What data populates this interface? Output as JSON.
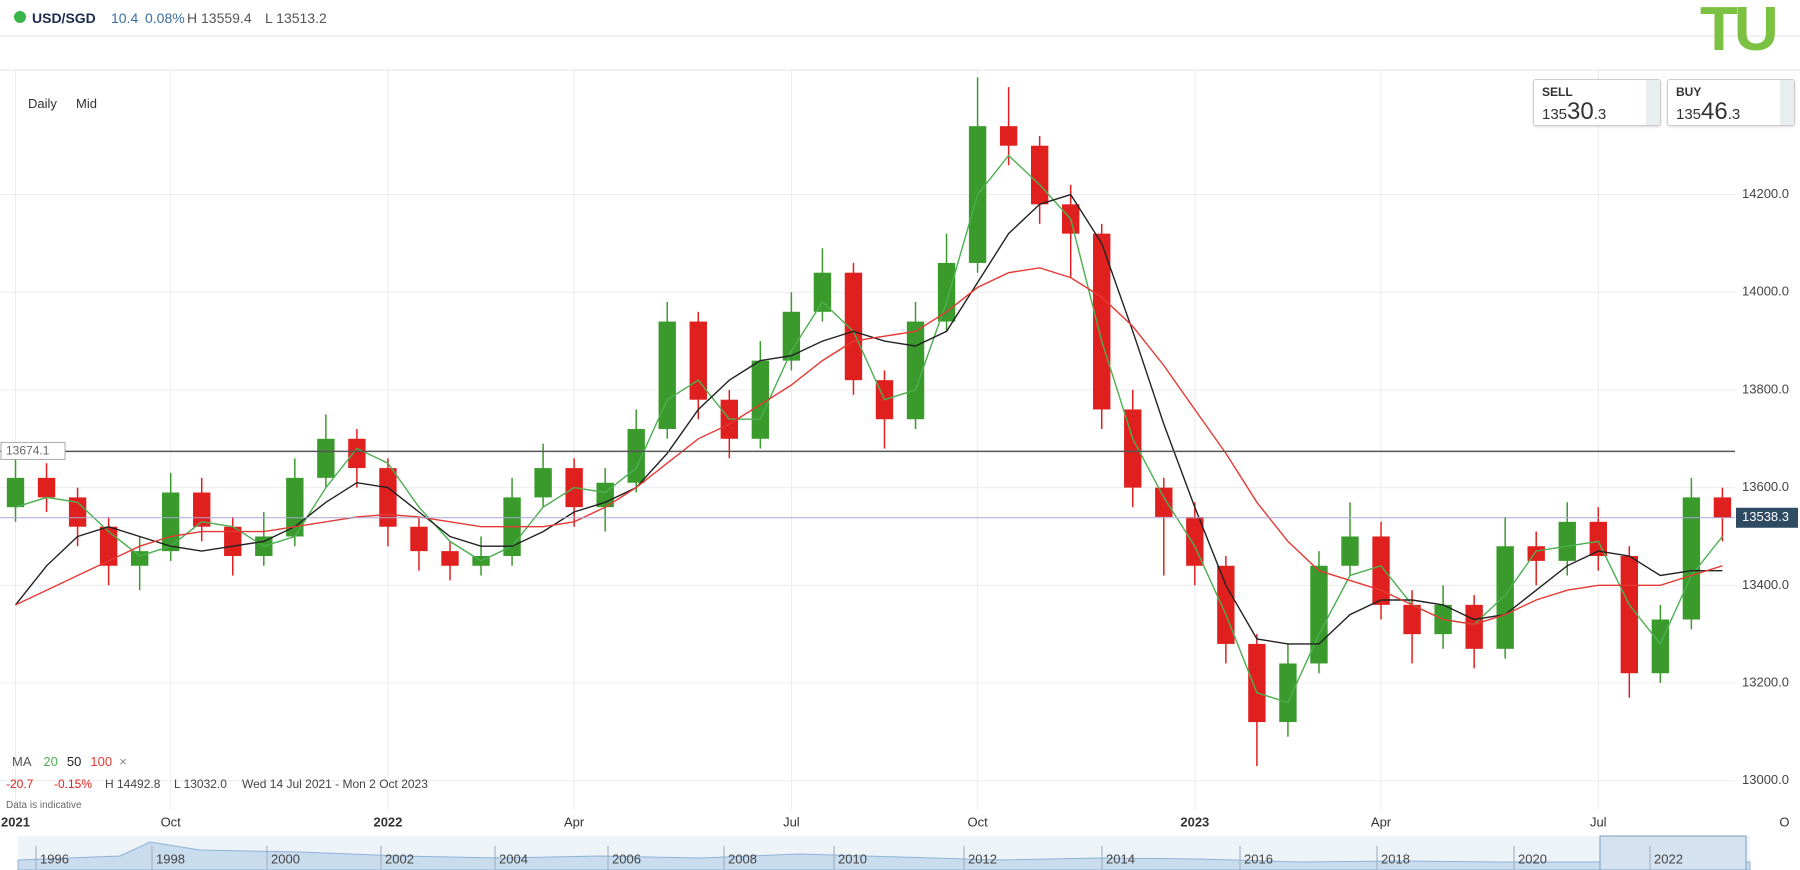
{
  "header": {
    "symbol": "USD/SGD",
    "change": "10.4",
    "change_pct": "0.08%",
    "high": "H 13559.4",
    "low": "L 13513.2"
  },
  "logo": "TU",
  "sell": {
    "label": "SELL",
    "prefix": "135",
    "big": "30",
    "suffix": ".3"
  },
  "buy": {
    "label": "BUY",
    "prefix": "135",
    "big": "46",
    "suffix": ".3"
  },
  "toolbar": {
    "interval": "Daily",
    "price_type": "Mid"
  },
  "stats": {
    "ma_label": "MA",
    "change": "-20.7",
    "change_pct": "-0.15%",
    "high": "H 14492.8",
    "low": "L 13032.0",
    "range": "Wed 14 Jul 2021 - Mon 2 Oct 2023",
    "close": "×",
    "note": "Data is indicative"
  },
  "navigator": {
    "years": [
      "1996",
      "1998",
      "2000",
      "2002",
      "2004",
      "2006",
      "2008",
      "2010",
      "2012",
      "2014",
      "2016",
      "2018",
      "2020",
      "2022"
    ]
  },
  "chart_data": {
    "type": "candlestick",
    "up_color": "#3a9b2c",
    "down_color": "#e0201f",
    "categories": [
      "2021",
      null,
      null,
      null,
      null,
      "Oct",
      null,
      null,
      null,
      null,
      null,
      null,
      "2022",
      null,
      null,
      null,
      null,
      null,
      "Apr",
      null,
      null,
      null,
      null,
      null,
      null,
      "Jul",
      null,
      null,
      null,
      null,
      null,
      "Oct",
      null,
      null,
      null,
      null,
      null,
      null,
      "2023",
      null,
      null,
      null,
      null,
      null,
      "Apr",
      null,
      null,
      null,
      null,
      null,
      null,
      "Jul",
      null,
      null,
      null,
      null,
      null,
      "O"
    ],
    "open": [
      13560,
      13620,
      13580,
      13520,
      13440,
      13470,
      13590,
      13520,
      13460,
      13500,
      13620,
      13700,
      13640,
      13520,
      13470,
      13440,
      13460,
      13580,
      13640,
      13560,
      13610,
      13720,
      13940,
      13780,
      13700,
      13860,
      13960,
      14040,
      13820,
      13740,
      13940,
      14060,
      14340,
      14300,
      14180,
      14120,
      13760,
      13600,
      13540,
      13440,
      13280,
      13120,
      13240,
      13440,
      13500,
      13360,
      13300,
      13360,
      13270,
      13480,
      13450,
      13530,
      13460,
      13220,
      13330,
      13580,
      null,
      null
    ],
    "high": [
      13660,
      13650,
      13600,
      13540,
      13500,
      13630,
      13620,
      13540,
      13550,
      13660,
      13750,
      13720,
      13660,
      13540,
      13490,
      13500,
      13620,
      13690,
      13660,
      13640,
      13760,
      13980,
      13960,
      13800,
      13900,
      14000,
      14090,
      14060,
      13840,
      13980,
      14120,
      14440,
      14420,
      14320,
      14220,
      14140,
      13800,
      13620,
      13570,
      13460,
      13300,
      13280,
      13470,
      13570,
      13530,
      13390,
      13400,
      13380,
      13540,
      13510,
      13570,
      13560,
      13480,
      13360,
      13620,
      13600,
      null,
      null
    ],
    "low": [
      13530,
      13550,
      13480,
      13400,
      13390,
      13450,
      13490,
      13420,
      13440,
      13480,
      13600,
      13600,
      13480,
      13430,
      13410,
      13420,
      13440,
      13560,
      13520,
      13510,
      13590,
      13700,
      13740,
      13660,
      13680,
      13840,
      13940,
      13790,
      13680,
      13720,
      13920,
      14040,
      14260,
      14140,
      14030,
      13720,
      13560,
      13420,
      13400,
      13240,
      13030,
      13090,
      13220,
      13420,
      13330,
      13240,
      13270,
      13230,
      13250,
      13400,
      13420,
      13430,
      13170,
      13200,
      13310,
      13490,
      null,
      null
    ],
    "close": [
      13620,
      13580,
      13520,
      13440,
      13470,
      13590,
      13520,
      13460,
      13500,
      13620,
      13700,
      13640,
      13520,
      13470,
      13440,
      13460,
      13580,
      13640,
      13560,
      13610,
      13720,
      13940,
      13780,
      13700,
      13860,
      13960,
      14040,
      13820,
      13740,
      13940,
      14060,
      14340,
      14300,
      14180,
      14120,
      13760,
      13600,
      13540,
      13440,
      13280,
      13120,
      13240,
      13440,
      13500,
      13360,
      13300,
      13360,
      13270,
      13480,
      13450,
      13530,
      13460,
      13220,
      13330,
      13580,
      13538,
      null,
      null
    ],
    "series": [
      {
        "name": "20",
        "color": "#4caf50",
        "values": [
          13560,
          13580,
          13570,
          13510,
          13460,
          13480,
          13530,
          13520,
          13480,
          13500,
          13600,
          13680,
          13650,
          13560,
          13490,
          13450,
          13480,
          13560,
          13600,
          13590,
          13640,
          13780,
          13820,
          13740,
          13740,
          13880,
          13980,
          13920,
          13780,
          13800,
          13980,
          14200,
          14280,
          14220,
          14150,
          13900,
          13700,
          13580,
          13480,
          13340,
          13180,
          13160,
          13300,
          13420,
          13440,
          13360,
          13330,
          13320,
          13380,
          13470,
          13480,
          13490,
          13360,
          13280,
          13420,
          13500,
          null,
          null
        ]
      },
      {
        "name": "50",
        "color": "#222222",
        "values": [
          13360,
          13440,
          13500,
          13520,
          13500,
          13480,
          13470,
          13480,
          13490,
          13520,
          13570,
          13610,
          13600,
          13550,
          13500,
          13480,
          13480,
          13510,
          13550,
          13570,
          13600,
          13670,
          13760,
          13820,
          13860,
          13870,
          13900,
          13920,
          13900,
          13890,
          13920,
          14020,
          14120,
          14180,
          14200,
          14100,
          13920,
          13730,
          13560,
          13400,
          13290,
          13280,
          13280,
          13340,
          13370,
          13370,
          13360,
          13330,
          13340,
          13390,
          13440,
          13470,
          13460,
          13420,
          13430,
          13430,
          null,
          null
        ]
      },
      {
        "name": "100",
        "color": "#e53935",
        "values": [
          13360,
          13390,
          13420,
          13450,
          13480,
          13500,
          13510,
          13510,
          13510,
          13520,
          13530,
          13540,
          13545,
          13540,
          13530,
          13520,
          13520,
          13520,
          13530,
          13560,
          13600,
          13650,
          13700,
          13730,
          13770,
          13810,
          13860,
          13900,
          13910,
          13920,
          13960,
          14010,
          14040,
          14050,
          14030,
          13990,
          13930,
          13850,
          13760,
          13670,
          13570,
          13490,
          13430,
          13410,
          13390,
          13360,
          13330,
          13320,
          13340,
          13370,
          13390,
          13400,
          13400,
          13400,
          13420,
          13440,
          null,
          null
        ]
      }
    ],
    "reference_line": 13674.1,
    "last_price": 13538.3,
    "ylim": [
      12940,
      14455
    ],
    "yticks": [
      {
        "value": 13000,
        "label": "13000.0"
      },
      {
        "value": 13200,
        "label": "13200.0"
      },
      {
        "value": 13400,
        "label": "13400.0"
      },
      {
        "value": 13600,
        "label": "13600.0"
      },
      {
        "value": 13800,
        "label": "13800.0"
      },
      {
        "value": 14000,
        "label": "14000.0"
      },
      {
        "value": 14200,
        "label": "14200.0"
      }
    ],
    "grid": true
  }
}
